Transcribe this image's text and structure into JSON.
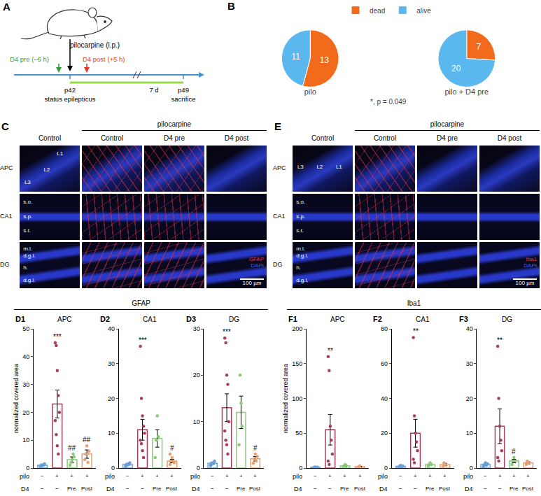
{
  "schematic": {
    "panel_label": "A",
    "drug": "pilocarpine (i.p.)",
    "pre": "D4 pre (–6 h)",
    "post": "D4 post (+5 h)",
    "start": "p42",
    "event": "status epilepticus",
    "duration": "7 d",
    "end": "p49",
    "endpoint": "sacrifice",
    "pre_color": "#2e9e3a",
    "post_color": "#e2352b",
    "timeline_color": "#4a90d9",
    "period_color": "#9ad94a"
  },
  "pie_panel_label": "B",
  "pie_annotation": "*, p = 0.049",
  "chart_data": [
    {
      "type": "pie",
      "title": "pilo",
      "categories": [
        "dead",
        "alive"
      ],
      "values": [
        13,
        11
      ],
      "colors": [
        "#f26a1b",
        "#5bb8ee"
      ],
      "data_labels": true,
      "legend": "top"
    },
    {
      "type": "pie",
      "title": "pilo + D4 pre",
      "categories": [
        "dead",
        "alive"
      ],
      "values": [
        7,
        20
      ],
      "colors": [
        "#f26a1b",
        "#5bb8ee"
      ],
      "data_labels": true,
      "legend": "top"
    },
    {
      "type": "bar",
      "group": "D",
      "panel_label": "D1",
      "title": "APC",
      "ylabel": "normalized covered area",
      "row_labels": [
        "pilo",
        "D4"
      ],
      "categories": [
        [
          "−",
          "−"
        ],
        [
          "+",
          "−"
        ],
        [
          "+",
          "Pre"
        ],
        [
          "+",
          "Post"
        ]
      ],
      "values": [
        1,
        23,
        3,
        5
      ],
      "errors": [
        0.2,
        5,
        1,
        1.5
      ],
      "points": [
        [
          0.5,
          0.8,
          1,
          1.2,
          1.5,
          0.7,
          1.1,
          0.9
        ],
        [
          45,
          44,
          35,
          26,
          20,
          17,
          12,
          8,
          5
        ],
        [
          1,
          2,
          3,
          5,
          4
        ],
        [
          3,
          5,
          8,
          2,
          6
        ]
      ],
      "colors": [
        "#6a9fd8",
        "#a3405e",
        "#8cc97a",
        "#e8a070"
      ],
      "ylim": [
        0,
        50
      ],
      "yticks": [
        0,
        10,
        20,
        30,
        40,
        50
      ],
      "annotations": [
        {
          "category": 1,
          "text": "***"
        },
        {
          "category": 2,
          "text": "##"
        },
        {
          "category": 3,
          "text": "##"
        }
      ]
    },
    {
      "type": "bar",
      "group": "D",
      "panel_label": "D2",
      "title": "CA1",
      "row_labels": [
        "pilo",
        "D4"
      ],
      "categories": [
        [
          "−",
          "−"
        ],
        [
          "+",
          "−"
        ],
        [
          "+",
          "Pre"
        ],
        [
          "+",
          "Post"
        ]
      ],
      "values": [
        1,
        11,
        8.5,
        2
      ],
      "errors": [
        0.2,
        3,
        2.5,
        0.5
      ],
      "points": [
        [
          0.5,
          0.8,
          1,
          1.2,
          1.5,
          0.7,
          1.1,
          0.9
        ],
        [
          35,
          20,
          15,
          12,
          10,
          8,
          7,
          5,
          3
        ],
        [
          3,
          8,
          15,
          9
        ],
        [
          1,
          2,
          3,
          2,
          1.5,
          4
        ]
      ],
      "colors": [
        "#6a9fd8",
        "#a3405e",
        "#8cc97a",
        "#e8a070"
      ],
      "ylim": [
        0,
        40
      ],
      "yticks": [
        0,
        10,
        20,
        30,
        40
      ],
      "annotations": [
        {
          "category": 1,
          "text": "***"
        },
        {
          "category": 3,
          "text": "#"
        }
      ]
    },
    {
      "type": "bar",
      "group": "D",
      "panel_label": "D3",
      "title": "DG",
      "row_labels": [
        "pilo",
        "D4"
      ],
      "categories": [
        [
          "−",
          "−"
        ],
        [
          "+",
          "−"
        ],
        [
          "+",
          "Pre"
        ],
        [
          "+",
          "Post"
        ]
      ],
      "values": [
        1,
        13,
        12,
        2
      ],
      "errors": [
        0.2,
        3,
        3.5,
        0.5
      ],
      "points": [
        [
          0.5,
          0.8,
          1,
          1.2,
          1.5,
          0.7,
          1.1,
          0.9
        ],
        [
          28,
          27,
          20,
          18,
          10,
          8,
          6,
          5,
          3
        ],
        [
          5,
          20,
          14,
          9
        ],
        [
          1,
          2,
          3,
          1.5,
          2.5
        ]
      ],
      "colors": [
        "#6a9fd8",
        "#a3405e",
        "#8cc97a",
        "#e8a070"
      ],
      "ylim": [
        0,
        30
      ],
      "yticks": [
        0,
        10,
        20,
        30
      ],
      "annotations": [
        {
          "category": 1,
          "text": "***"
        },
        {
          "category": 3,
          "text": "#"
        }
      ]
    },
    {
      "type": "bar",
      "group": "F",
      "panel_label": "F1",
      "title": "APC",
      "ylabel": "normalized covered area",
      "row_labels": [
        "pilo",
        "D4"
      ],
      "categories": [
        [
          "−",
          "−"
        ],
        [
          "+",
          "−"
        ],
        [
          "+",
          "Pre"
        ],
        [
          "+",
          "Post"
        ]
      ],
      "values": [
        1,
        55,
        3,
        2
      ],
      "errors": [
        0.3,
        22,
        1,
        0.5
      ],
      "points": [
        [
          0.5,
          1,
          1.5,
          0.8,
          1.2
        ],
        [
          160,
          140,
          60,
          40,
          20,
          10,
          5
        ],
        [
          2,
          3,
          5,
          4
        ],
        [
          1,
          2,
          3
        ]
      ],
      "colors": [
        "#6a9fd8",
        "#a3405e",
        "#8cc97a",
        "#e8a070"
      ],
      "ylim": [
        0,
        200
      ],
      "yticks": [
        0,
        50,
        100,
        150,
        200
      ],
      "annotations": [
        {
          "category": 1,
          "text": "**"
        }
      ]
    },
    {
      "type": "bar",
      "group": "F",
      "panel_label": "F2",
      "title": "CA1",
      "row_labels": [
        "pilo",
        "D4"
      ],
      "categories": [
        [
          "−",
          "−"
        ],
        [
          "+",
          "−"
        ],
        [
          "+",
          "Pre"
        ],
        [
          "+",
          "Post"
        ]
      ],
      "values": [
        1,
        20,
        2,
        2
      ],
      "errors": [
        0.3,
        8,
        0.5,
        0.7
      ],
      "points": [
        [
          0.5,
          1,
          1.5,
          0.8,
          1.2
        ],
        [
          75,
          30,
          20,
          15,
          10,
          5,
          3
        ],
        [
          1,
          2,
          3,
          2
        ],
        [
          1,
          3,
          2
        ]
      ],
      "colors": [
        "#6a9fd8",
        "#a3405e",
        "#8cc97a",
        "#e8a070"
      ],
      "ylim": [
        0,
        80
      ],
      "yticks": [
        0,
        20,
        40,
        60,
        80
      ],
      "annotations": [
        {
          "category": 1,
          "text": "**"
        }
      ]
    },
    {
      "type": "bar",
      "group": "F",
      "panel_label": "F3",
      "title": "DG",
      "row_labels": [
        "pilo",
        "D4"
      ],
      "categories": [
        [
          "−",
          "−"
        ],
        [
          "+",
          "−"
        ],
        [
          "+",
          "Pre"
        ],
        [
          "+",
          "Post"
        ]
      ],
      "values": [
        1,
        12,
        2,
        1.5
      ],
      "errors": [
        0.2,
        5,
        0.5,
        0.3
      ],
      "points": [
        [
          0.5,
          1,
          1.5,
          0.8,
          1.2
        ],
        [
          35,
          20,
          12,
          8,
          5,
          3,
          2
        ],
        [
          1,
          2,
          3,
          2
        ],
        [
          1,
          2,
          1.5
        ]
      ],
      "colors": [
        "#6a9fd8",
        "#a3405e",
        "#8cc97a",
        "#e8a070"
      ],
      "ylim": [
        0,
        40
      ],
      "yticks": [
        0,
        10,
        20,
        30,
        40
      ],
      "annotations": [
        {
          "category": 1,
          "text": "**"
        },
        {
          "category": 2,
          "text": "#"
        }
      ]
    }
  ],
  "bar_groups": [
    {
      "panel_label": "D",
      "header": "GFAP"
    },
    {
      "panel_label": "F",
      "header": "Iba1"
    }
  ],
  "micrographs": [
    {
      "panel_label": "C",
      "group_header": "pilocarpine",
      "columns": [
        "Control",
        "Control",
        "D4 pre",
        "D4 post"
      ],
      "rows": [
        "APC",
        "CA1",
        "DG"
      ],
      "layer_labels": [
        [
          "L1",
          "L2",
          "L3"
        ],
        [
          "s.o.",
          "s.p.",
          "s.r."
        ],
        [
          "m.l.",
          "d.g.l.",
          "h.",
          "d.g.l."
        ]
      ],
      "scale_bar": "100 µm",
      "stain": "GFAP",
      "counterstain": "DAPI",
      "stain_color": "#e8304a",
      "counterstain_color": "#3a5cff"
    },
    {
      "panel_label": "E",
      "group_header": "pilocarpine",
      "columns": [
        "Control",
        "Control",
        "D4 pre",
        "D4 post"
      ],
      "rows": [
        "APC",
        "CA1",
        "DG"
      ],
      "layer_labels": [
        [
          "L3",
          "L2",
          "L1"
        ],
        [
          "s.o.",
          "s.p.",
          "s.r."
        ],
        [
          "m.l.",
          "d.g.l.",
          "h.",
          "d.g.l."
        ]
      ],
      "scale_bar": "100 µm",
      "stain": "Iba1",
      "counterstain": "DAPI",
      "stain_color": "#e8304a",
      "counterstain_color": "#3a5cff"
    }
  ]
}
